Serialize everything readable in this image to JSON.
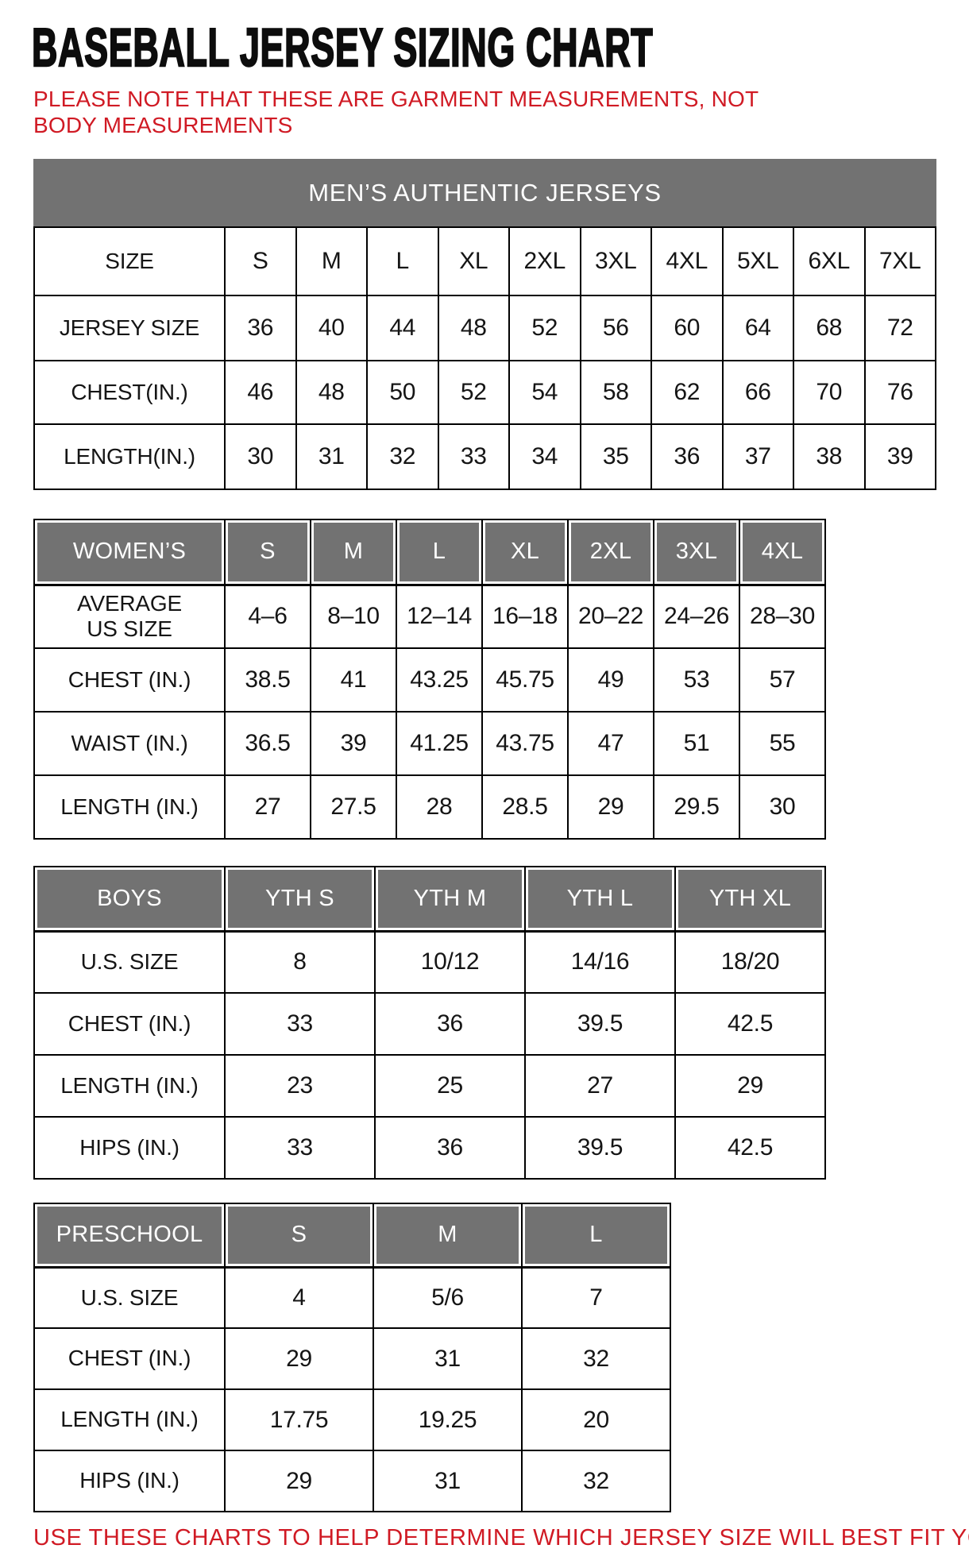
{
  "theme": {
    "accent_red": "#d01a24",
    "header_gray": "#727272",
    "border_black": "#000000"
  },
  "page": {
    "title": "BASEBALL JERSEY SIZING CHART",
    "note": "PLEASE NOTE THAT THESE ARE GARMENT MEASUREMENTS, NOT BODY MEASUREMENTS",
    "footer": "USE THESE CHARTS TO HELP DETERMINE WHICH JERSEY SIZE WILL BEST FIT YOU."
  },
  "tables": [
    {
      "name": "mens",
      "banner": "MEN’S AUTHENTIC JERSEYS",
      "rows": [
        [
          "SIZE",
          "S",
          "M",
          "L",
          "XL",
          "2XL",
          "3XL",
          "4XL",
          "5XL",
          "6XL",
          "7XL"
        ],
        [
          "JERSEY SIZE",
          "36",
          "40",
          "44",
          "48",
          "52",
          "56",
          "60",
          "64",
          "68",
          "72"
        ],
        [
          "CHEST(IN.)",
          "46",
          "48",
          "50",
          "52",
          "54",
          "58",
          "62",
          "66",
          "70",
          "76"
        ],
        [
          "LENGTH(IN.)",
          "30",
          "31",
          "32",
          "33",
          "34",
          "35",
          "36",
          "37",
          "38",
          "39"
        ]
      ]
    },
    {
      "name": "womens",
      "header": [
        "WOMEN’S",
        "S",
        "M",
        "L",
        "XL",
        "2XL",
        "3XL",
        "4XL"
      ],
      "rows": [
        [
          "AVERAGE\nUS SIZE",
          "4–6",
          "8–10",
          "12–14",
          "16–18",
          "20–22",
          "24–26",
          "28–30"
        ],
        [
          "CHEST (IN.)",
          "38.5",
          "41",
          "43.25",
          "45.75",
          "49",
          "53",
          "57"
        ],
        [
          "WAIST (IN.)",
          "36.5",
          "39",
          "41.25",
          "43.75",
          "47",
          "51",
          "55"
        ],
        [
          "LENGTH (IN.)",
          "27",
          "27.5",
          "28",
          "28.5",
          "29",
          "29.5",
          "30"
        ]
      ]
    },
    {
      "name": "boys",
      "header": [
        "BOYS",
        "YTH S",
        "YTH M",
        "YTH L",
        "YTH XL"
      ],
      "rows": [
        [
          "U.S. SIZE",
          "8",
          "10/12",
          "14/16",
          "18/20"
        ],
        [
          "CHEST (IN.)",
          "33",
          "36",
          "39.5",
          "42.5"
        ],
        [
          "LENGTH (IN.)",
          "23",
          "25",
          "27",
          "29"
        ],
        [
          "HIPS (IN.)",
          "33",
          "36",
          "39.5",
          "42.5"
        ]
      ]
    },
    {
      "name": "preschool",
      "header": [
        "PRESCHOOL",
        "S",
        "M",
        "L"
      ],
      "rows": [
        [
          "U.S. SIZE",
          "4",
          "5/6",
          "7"
        ],
        [
          "CHEST (IN.)",
          "29",
          "31",
          "32"
        ],
        [
          "LENGTH (IN.)",
          "17.75",
          "19.25",
          "20"
        ],
        [
          "HIPS (IN.)",
          "29",
          "31",
          "32"
        ]
      ]
    }
  ]
}
